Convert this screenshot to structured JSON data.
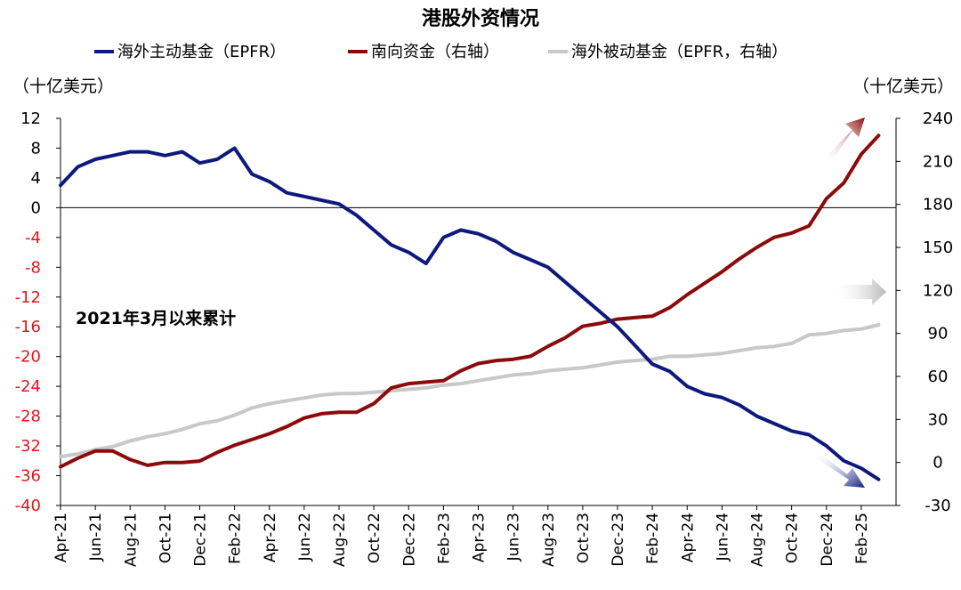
{
  "chart_data": {
    "type": "line",
    "title": "港股外资情况",
    "y_left_label": "（十亿美元）",
    "y_right_label": "（十亿美元）",
    "annotation": "2021年3月以来累计",
    "y_left_ticks": [
      12,
      8,
      4,
      0,
      -4,
      -8,
      -12,
      -16,
      -20,
      -24,
      -28,
      -32,
      -36,
      -40
    ],
    "y_left_range": [
      -40,
      12
    ],
    "y_right_ticks": [
      240,
      210,
      180,
      150,
      120,
      90,
      60,
      30,
      0,
      -30
    ],
    "y_right_range": [
      -30,
      240
    ],
    "x_ticks": [
      "Apr-21",
      "Jun-21",
      "Aug-21",
      "Oct-21",
      "Dec-21",
      "Feb-22",
      "Apr-22",
      "Jun-22",
      "Aug-22",
      "Oct-22",
      "Dec-22",
      "Feb-23",
      "Apr-23",
      "Jun-23",
      "Aug-23",
      "Oct-23",
      "Dec-23",
      "Feb-24",
      "Apr-24",
      "Jun-24",
      "Aug-24",
      "Oct-24",
      "Dec-24",
      "Feb-25"
    ],
    "x_range": [
      "2021-04",
      "2025-04"
    ],
    "colors": {
      "negative_tick": "#e8141c",
      "positive_tick": "#000000"
    },
    "series": [
      {
        "name": "海外主动基金（EPFR）",
        "axis": "left",
        "color": "#0d1a7c",
        "x": [
          "2021-04",
          "2021-05",
          "2021-06",
          "2021-07",
          "2021-08",
          "2021-09",
          "2021-10",
          "2021-11",
          "2021-12",
          "2022-01",
          "2022-02",
          "2022-03",
          "2022-04",
          "2022-05",
          "2022-06",
          "2022-07",
          "2022-08",
          "2022-09",
          "2022-10",
          "2022-11",
          "2022-12",
          "2023-01",
          "2023-02",
          "2023-03",
          "2023-04",
          "2023-05",
          "2023-06",
          "2023-07",
          "2023-08",
          "2023-09",
          "2023-10",
          "2023-11",
          "2023-12",
          "2024-01",
          "2024-02",
          "2024-03",
          "2024-04",
          "2024-05",
          "2024-06",
          "2024-07",
          "2024-08",
          "2024-09",
          "2024-10",
          "2024-11",
          "2024-12",
          "2025-01",
          "2025-02",
          "2025-03"
        ],
        "values": [
          3,
          5.5,
          6.5,
          7,
          7.5,
          7.5,
          7,
          7.5,
          6,
          6.5,
          8,
          4.5,
          3.5,
          2,
          1.5,
          1,
          0.5,
          -1,
          -3,
          -5,
          -6,
          -7.5,
          -4,
          -3,
          -3.5,
          -4.5,
          -6,
          -7,
          -8,
          -10,
          -12,
          -14,
          -16,
          -18.5,
          -21,
          -22,
          -24,
          -25,
          -25.5,
          -26.5,
          -28,
          -29,
          -30,
          -30.5,
          -32,
          -34,
          -35,
          -36.5
        ]
      },
      {
        "name": "南向资金（右轴）",
        "axis": "right",
        "color": "#8b0a0a",
        "x": [
          "2021-04",
          "2021-05",
          "2021-06",
          "2021-07",
          "2021-08",
          "2021-09",
          "2021-10",
          "2021-11",
          "2021-12",
          "2022-01",
          "2022-02",
          "2022-03",
          "2022-04",
          "2022-05",
          "2022-06",
          "2022-07",
          "2022-08",
          "2022-09",
          "2022-10",
          "2022-11",
          "2022-12",
          "2023-01",
          "2023-02",
          "2023-03",
          "2023-04",
          "2023-05",
          "2023-06",
          "2023-07",
          "2023-08",
          "2023-09",
          "2023-10",
          "2023-11",
          "2023-12",
          "2024-01",
          "2024-02",
          "2024-03",
          "2024-04",
          "2024-05",
          "2024-06",
          "2024-07",
          "2024-08",
          "2024-09",
          "2024-10",
          "2024-11",
          "2024-12",
          "2025-01",
          "2025-02",
          "2025-03"
        ],
        "values": [
          -3,
          3,
          8,
          8,
          2,
          -2,
          0,
          0,
          1,
          7,
          12,
          16,
          20,
          25,
          31,
          34,
          35,
          35,
          41,
          52,
          55,
          56,
          57,
          64,
          69,
          71,
          72,
          74,
          81,
          87,
          95,
          97,
          100,
          101,
          102,
          108,
          117,
          125,
          133,
          142,
          150,
          157,
          160,
          165,
          184,
          195,
          215,
          228
        ]
      },
      {
        "name": "海外被动基金（EPFR，右轴）",
        "axis": "right",
        "color": "#c8c8c8",
        "x": [
          "2021-04",
          "2021-05",
          "2021-06",
          "2021-07",
          "2021-08",
          "2021-09",
          "2021-10",
          "2021-11",
          "2021-12",
          "2022-01",
          "2022-02",
          "2022-03",
          "2022-04",
          "2022-05",
          "2022-06",
          "2022-07",
          "2022-08",
          "2022-09",
          "2022-10",
          "2022-11",
          "2022-12",
          "2023-01",
          "2023-02",
          "2023-03",
          "2023-04",
          "2023-05",
          "2023-06",
          "2023-07",
          "2023-08",
          "2023-09",
          "2023-10",
          "2023-11",
          "2023-12",
          "2024-01",
          "2024-02",
          "2024-03",
          "2024-04",
          "2024-05",
          "2024-06",
          "2024-07",
          "2024-08",
          "2024-09",
          "2024-10",
          "2024-11",
          "2024-12",
          "2025-01",
          "2025-02",
          "2025-03"
        ],
        "values": [
          4,
          6,
          9,
          11,
          15,
          18,
          20,
          23,
          27,
          29,
          33,
          38,
          41,
          43,
          45,
          47,
          48,
          48,
          49,
          50,
          51,
          52,
          54,
          55,
          57,
          59,
          61,
          62,
          64,
          65,
          66,
          68,
          70,
          71,
          72,
          74,
          74,
          75,
          76,
          78,
          80,
          81,
          83,
          89,
          90,
          92,
          93,
          96
        ]
      }
    ]
  }
}
